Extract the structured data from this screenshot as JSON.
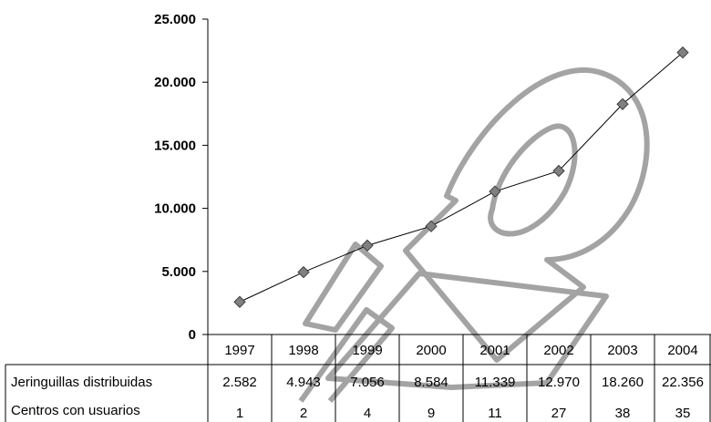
{
  "chart_data": {
    "type": "line",
    "title": "",
    "xlabel": "",
    "ylabel": "",
    "ylim": [
      0,
      25000
    ],
    "y_ticks": [
      0,
      5000,
      10000,
      15000,
      20000,
      25000
    ],
    "y_tick_labels": [
      "0",
      "5.000",
      "10.000",
      "15.000",
      "20.000",
      "25.000"
    ],
    "categories": [
      "1997",
      "1998",
      "1999",
      "2000",
      "2001",
      "2002",
      "2003",
      "2004"
    ],
    "grid": false,
    "legend": "none",
    "series": [
      {
        "name": "Jeringuillas distribuidas",
        "values": [
          2582,
          4943,
          7056,
          8584,
          11339,
          12970,
          18260,
          22356
        ],
        "labels": [
          "2.582",
          "4.943",
          "7.056",
          "8.584",
          "11.339",
          "12.970",
          "18.260",
          "22.356"
        ],
        "plotted": true,
        "color": "#808080"
      },
      {
        "name": "Centros con usuarios",
        "values": [
          1,
          2,
          4,
          9,
          11,
          27,
          38,
          35
        ],
        "labels": [
          "1",
          "2",
          "4",
          "9",
          "11",
          "27",
          "38",
          "35"
        ],
        "plotted": false
      }
    ]
  }
}
